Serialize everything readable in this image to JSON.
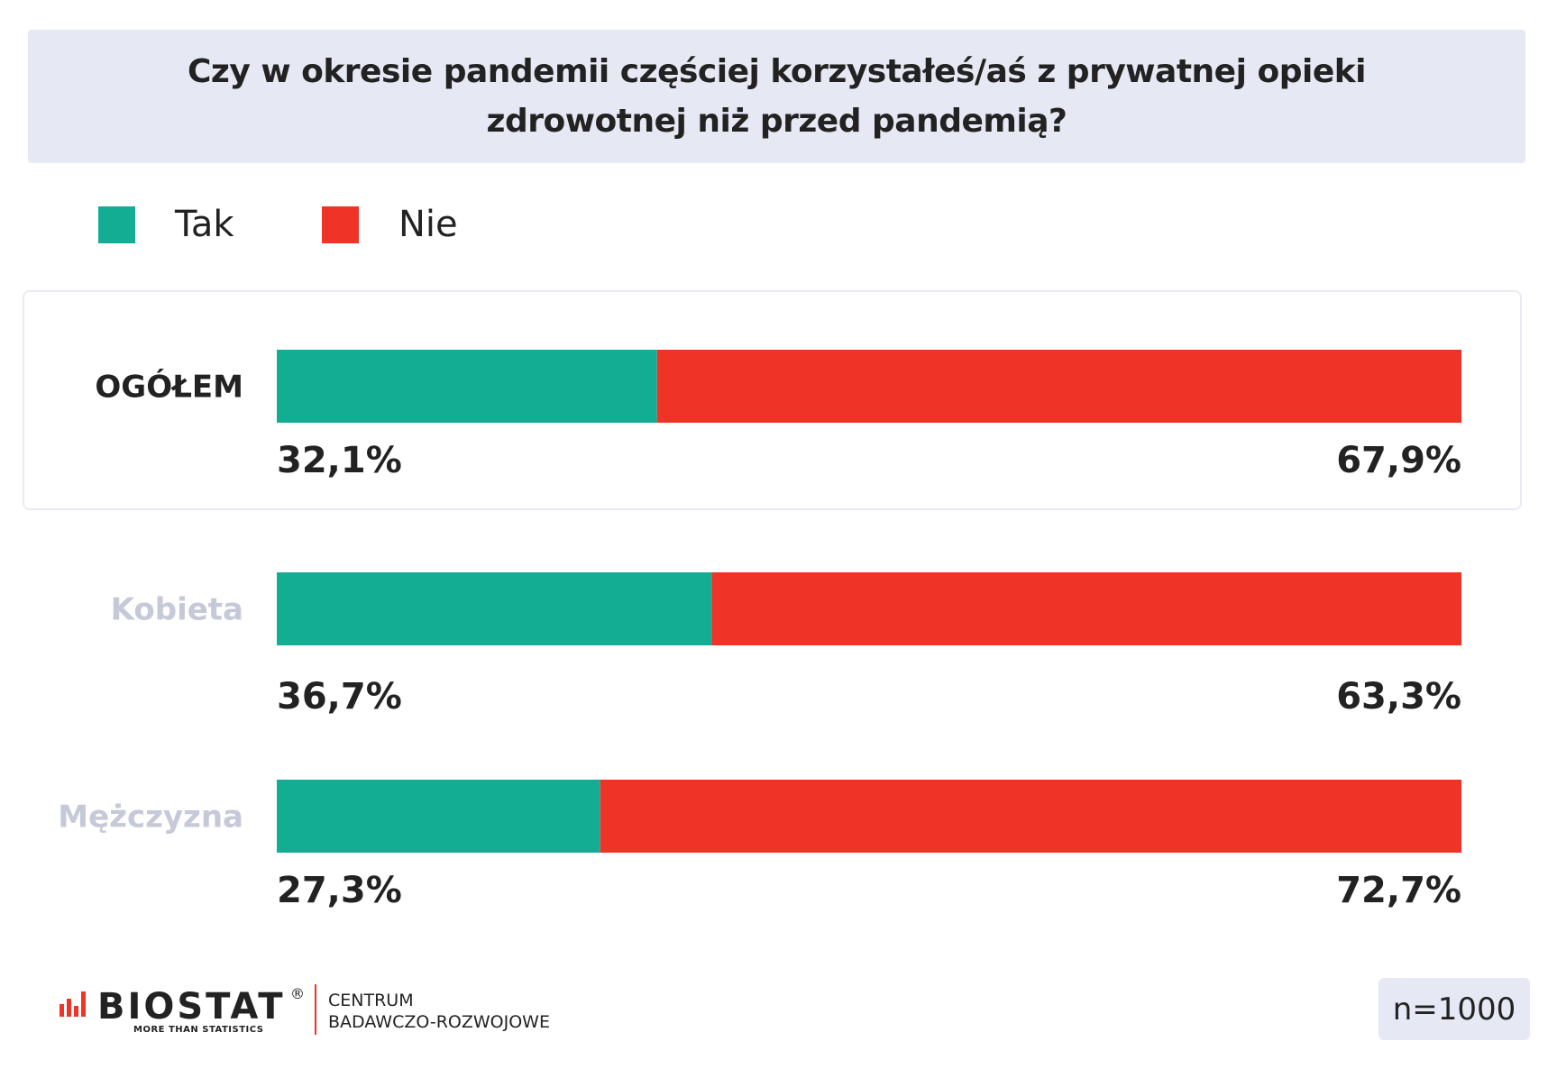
{
  "chart_data": {
    "type": "bar",
    "orientation": "horizontal",
    "stacked": true,
    "title": "Czy w okresie pandemii częściej korzystałeś/aś z prywatnej opieki zdrowotnej niż przed pandemią?",
    "categories": [
      "OGÓŁEM",
      "Kobieta",
      "Mężczyzna"
    ],
    "series": [
      {
        "name": "Tak",
        "color": "#13ad93",
        "values": [
          32.1,
          36.7,
          27.3
        ],
        "labels": [
          "32,1%",
          "36,7%",
          "27,3%"
        ]
      },
      {
        "name": "Nie",
        "color": "#ef3427",
        "values": [
          67.9,
          63.3,
          72.7
        ],
        "labels": [
          "67,9%",
          "63,3%",
          "72,7%"
        ]
      }
    ],
    "xlim": [
      0,
      100
    ],
    "legend": "top-left",
    "grid": false,
    "category_colors": [
      "#222222",
      "#c5c9d8",
      "#c5c9d8"
    ],
    "highlighted_category": "OGÓŁEM"
  },
  "legend": {
    "items": [
      {
        "label": "Tak",
        "color": "#13ad93"
      },
      {
        "label": "Nie",
        "color": "#ef3427"
      }
    ]
  },
  "footer": {
    "logo_word": "BIOSTAT",
    "logo_reg": "®",
    "logo_tagline": "MORE THAN STATISTICS",
    "logo_sub_line1": "CENTRUM",
    "logo_sub_line2": "BADAWCZO-ROZWOJOWE",
    "sample": "n=1000"
  }
}
